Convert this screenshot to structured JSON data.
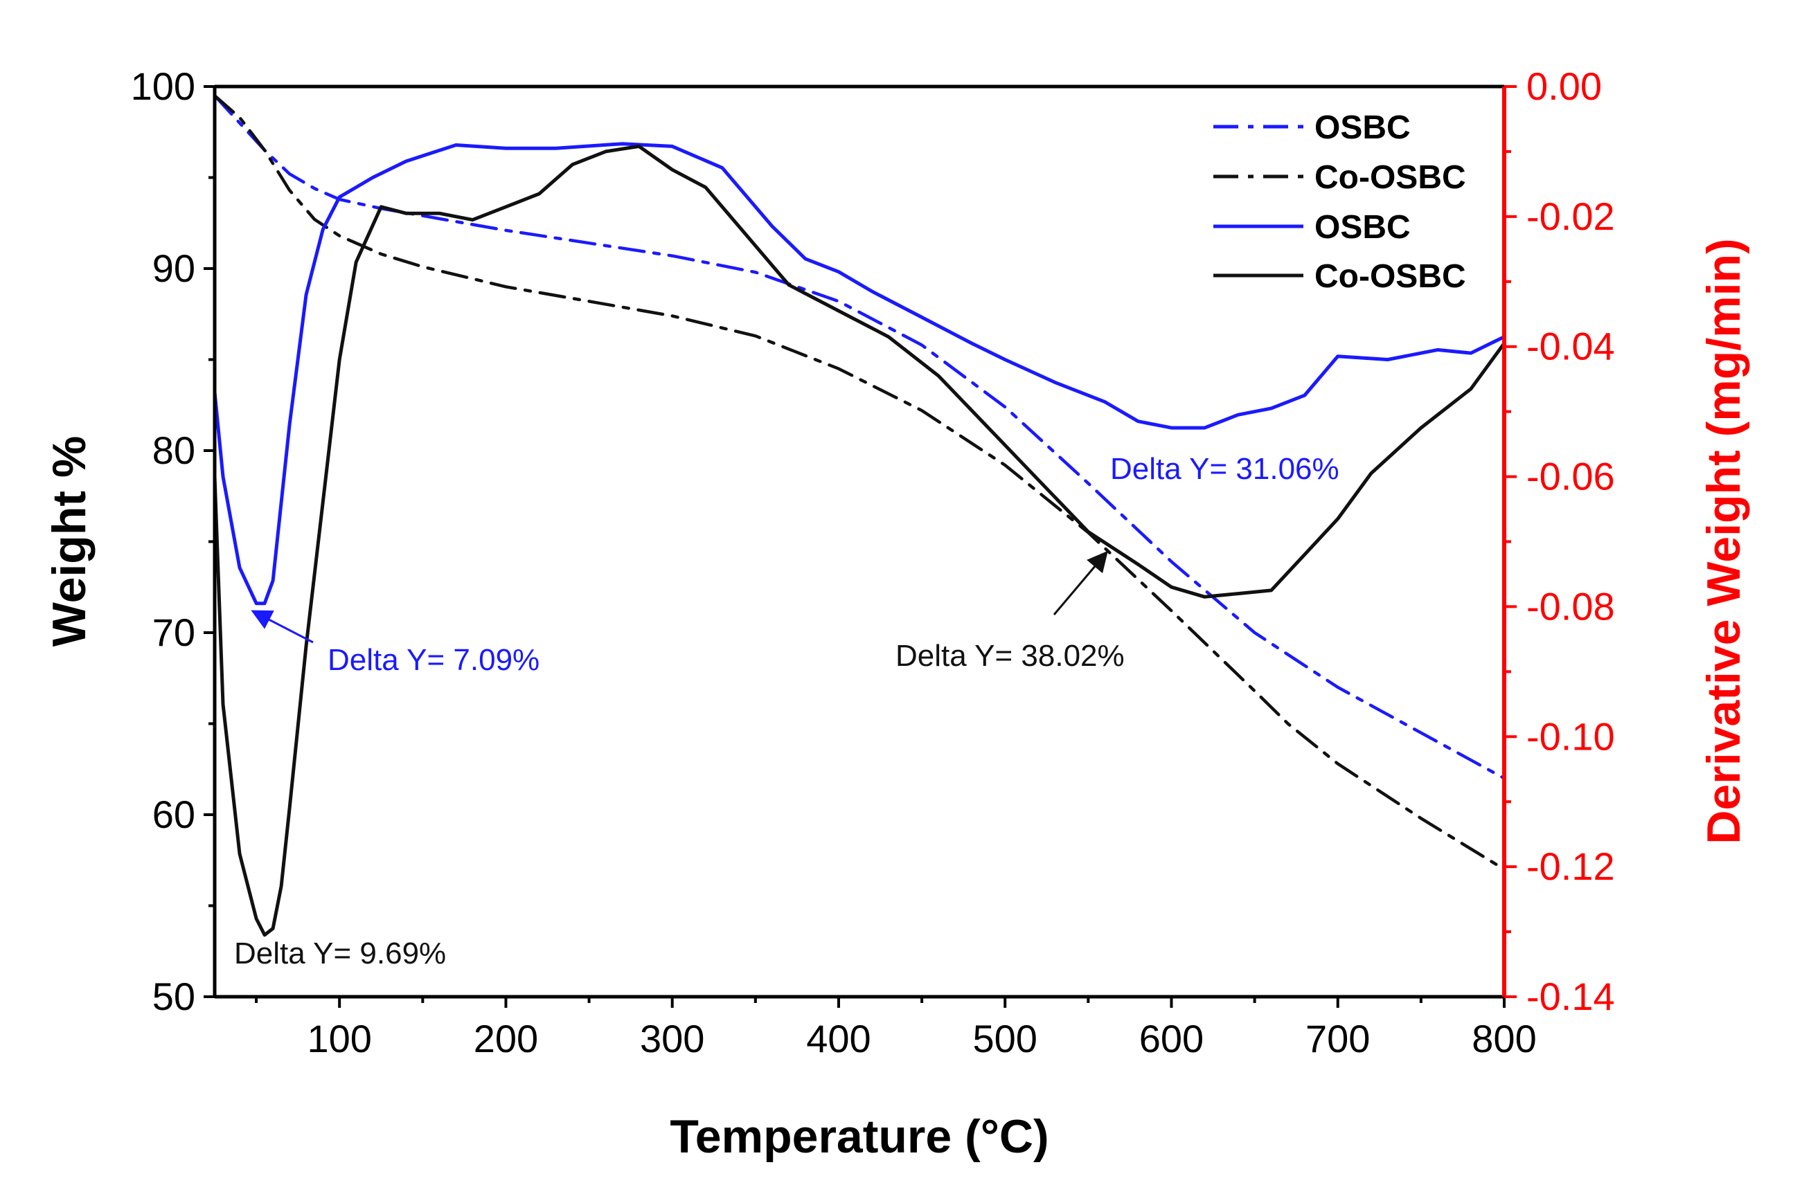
{
  "chart_data": {
    "type": "line",
    "xlabel": "Temperature (°C)",
    "ylabel_left": "Weight %",
    "ylabel_right": "Derivative Weight (mg/min)",
    "xlim": [
      25,
      800
    ],
    "ylim_left": [
      50,
      100
    ],
    "ylim_right": [
      -0.14,
      0.0
    ],
    "x_ticks": [
      100,
      200,
      300,
      400,
      500,
      600,
      700,
      800
    ],
    "y_left_ticks": [
      50,
      60,
      70,
      80,
      90,
      100
    ],
    "y_right_ticks": [
      -0.14,
      -0.12,
      -0.1,
      -0.08,
      -0.06,
      -0.04,
      -0.02,
      0.0
    ],
    "x_tick_labels": [
      "100",
      "200",
      "300",
      "400",
      "500",
      "600",
      "700",
      "800"
    ],
    "y_left_tick_labels": [
      "50",
      "60",
      "70",
      "80",
      "90",
      "100"
    ],
    "y_right_tick_labels": [
      "-0.14",
      "-0.12",
      "-0.10",
      "-0.08",
      "-0.06",
      "-0.04",
      "-0.02",
      "0.00"
    ],
    "colors": {
      "osbc": "#1a1aff",
      "co_osbc": "#111111",
      "right_axis": "#ff0000"
    },
    "legend": [
      {
        "label": "OSBC",
        "style": "dashdot",
        "color": "#1a1aff"
      },
      {
        "label": "Co-OSBC",
        "style": "dashdot",
        "color": "#111111"
      },
      {
        "label": "OSBC",
        "style": "solid",
        "color": "#1a1aff"
      },
      {
        "label": "Co-OSBC",
        "style": "solid",
        "color": "#111111"
      }
    ],
    "series": [
      {
        "name": "OSBC (weight)",
        "axis": "left",
        "style": "dashdot",
        "color": "#1a1aff",
        "x": [
          25,
          40,
          55,
          70,
          85,
          100,
          125,
          150,
          200,
          250,
          300,
          350,
          400,
          450,
          500,
          550,
          600,
          650,
          700,
          750,
          800
        ],
        "y": [
          99.5,
          98.0,
          96.5,
          95.2,
          94.4,
          93.8,
          93.3,
          92.9,
          92.1,
          91.4,
          90.7,
          89.8,
          88.2,
          85.8,
          82.4,
          78.2,
          73.9,
          70.0,
          67.0,
          64.5,
          62.0
        ]
      },
      {
        "name": "Co-OSBC (weight)",
        "axis": "left",
        "style": "dashdot",
        "color": "#111111",
        "x": [
          25,
          40,
          55,
          70,
          85,
          100,
          125,
          150,
          200,
          250,
          300,
          350,
          400,
          450,
          500,
          550,
          600,
          650,
          670,
          700,
          750,
          800
        ],
        "y": [
          99.5,
          98.3,
          96.5,
          94.3,
          92.7,
          91.8,
          90.8,
          90.1,
          89.0,
          88.2,
          87.4,
          86.3,
          84.5,
          82.2,
          79.2,
          75.5,
          71.2,
          66.8,
          65.0,
          62.8,
          59.8,
          57.0
        ]
      },
      {
        "name": "OSBC (derivative)",
        "axis": "right",
        "style": "solid",
        "color": "#1a1aff",
        "x": [
          25,
          30,
          40,
          50,
          55,
          60,
          70,
          80,
          90,
          100,
          120,
          140,
          170,
          200,
          230,
          270,
          300,
          330,
          360,
          380,
          400,
          420,
          450,
          480,
          500,
          530,
          560,
          580,
          600,
          620,
          640,
          660,
          680,
          700,
          730,
          760,
          780,
          800
        ],
        "y": [
          -0.047,
          -0.06,
          -0.074,
          -0.0795,
          -0.0795,
          -0.076,
          -0.052,
          -0.032,
          -0.022,
          -0.017,
          -0.014,
          -0.0115,
          -0.009,
          -0.0095,
          -0.0095,
          -0.0088,
          -0.0092,
          -0.0125,
          -0.0215,
          -0.0265,
          -0.0285,
          -0.0315,
          -0.0355,
          -0.0395,
          -0.042,
          -0.0455,
          -0.0485,
          -0.0515,
          -0.0525,
          -0.0525,
          -0.0505,
          -0.0495,
          -0.0475,
          -0.0415,
          -0.042,
          -0.0405,
          -0.041,
          -0.0385
        ]
      },
      {
        "name": "Co-OSBC (derivative)",
        "axis": "right",
        "style": "solid",
        "color": "#111111",
        "x": [
          25,
          30,
          40,
          50,
          55,
          60,
          65,
          70,
          80,
          90,
          100,
          110,
          125,
          140,
          160,
          180,
          200,
          220,
          240,
          260,
          280,
          300,
          320,
          340,
          370,
          400,
          430,
          460,
          490,
          520,
          550,
          580,
          600,
          620,
          640,
          660,
          680,
          700,
          720,
          750,
          780,
          800
        ],
        "y": [
          -0.06,
          -0.095,
          -0.118,
          -0.128,
          -0.1305,
          -0.1295,
          -0.123,
          -0.111,
          -0.086,
          -0.064,
          -0.042,
          -0.027,
          -0.0185,
          -0.0195,
          -0.0195,
          -0.0205,
          -0.0185,
          -0.0165,
          -0.012,
          -0.01,
          -0.0092,
          -0.0128,
          -0.0155,
          -0.0215,
          -0.0305,
          -0.0345,
          -0.0385,
          -0.0445,
          -0.0525,
          -0.0605,
          -0.0685,
          -0.0735,
          -0.077,
          -0.0785,
          -0.078,
          -0.0775,
          -0.072,
          -0.0665,
          -0.0595,
          -0.0525,
          -0.0465,
          -0.0395
        ]
      }
    ],
    "annotations": [
      {
        "text": "Delta Y= 9.69%",
        "color": "#111111"
      },
      {
        "text": "Delta Y= 7.09%",
        "color": "#1a1aff"
      },
      {
        "text": "Delta Y= 38.02%",
        "color": "#111111"
      },
      {
        "text": "Delta Y= 31.06%",
        "color": "#1a1aff"
      }
    ]
  }
}
